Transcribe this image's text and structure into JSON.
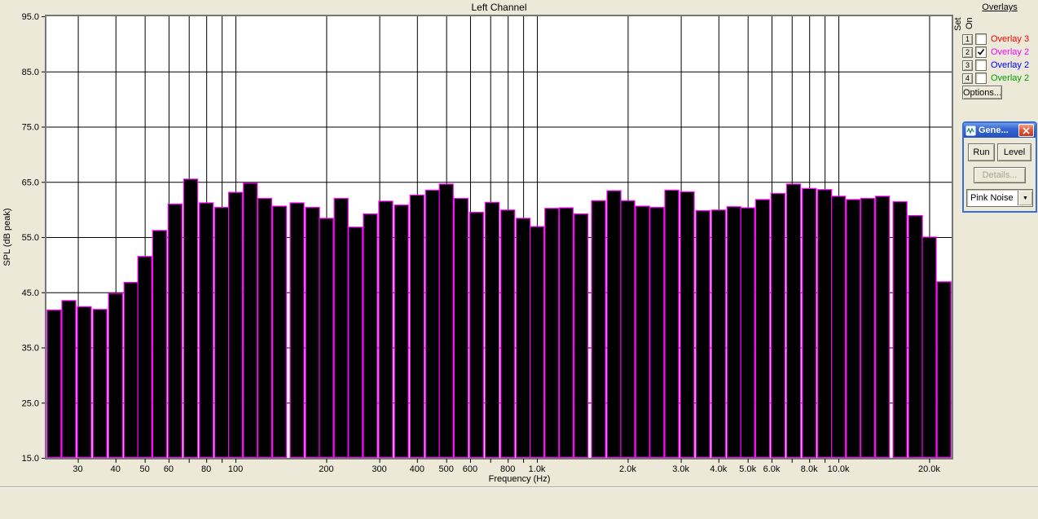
{
  "window": {
    "background": "#ece9d8"
  },
  "chart_data": {
    "type": "bar",
    "title": "Left Channel",
    "xlabel": "Frequency (Hz)",
    "ylabel": "SPL (dB peak)",
    "x_scale": "log",
    "xlim": [
      23.6,
      23740
    ],
    "ylim": [
      15,
      95
    ],
    "grid": true,
    "plot_bg": "#ffffff",
    "grid_color": "#000000",
    "bar_fill": "#000000",
    "bar_outline": "#ff00ff",
    "y_ticks": [
      {
        "v": 95,
        "label": "95.0"
      },
      {
        "v": 85,
        "label": "85.0"
      },
      {
        "v": 75,
        "label": "75.0"
      },
      {
        "v": 65,
        "label": "65.0"
      },
      {
        "v": 55,
        "label": "55.0"
      },
      {
        "v": 45,
        "label": "45.0"
      },
      {
        "v": 35,
        "label": "35.0"
      },
      {
        "v": 25,
        "label": "25.0"
      },
      {
        "v": 15,
        "label": "15.0"
      }
    ],
    "x_gridlines": [
      30,
      40,
      50,
      60,
      70,
      80,
      90,
      100,
      200,
      300,
      400,
      500,
      600,
      700,
      800,
      900,
      1000,
      2000,
      3000,
      4000,
      5000,
      6000,
      7000,
      8000,
      9000,
      10000,
      20000
    ],
    "x_ticks": [
      {
        "f": 30,
        "label": "30"
      },
      {
        "f": 40,
        "label": "40"
      },
      {
        "f": 50,
        "label": "50"
      },
      {
        "f": 60,
        "label": "60"
      },
      {
        "f": 80,
        "label": "80"
      },
      {
        "f": 100,
        "label": "100"
      },
      {
        "f": 200,
        "label": "200"
      },
      {
        "f": 300,
        "label": "300"
      },
      {
        "f": 400,
        "label": "400"
      },
      {
        "f": 500,
        "label": "500"
      },
      {
        "f": 600,
        "label": "600"
      },
      {
        "f": 800,
        "label": "800"
      },
      {
        "f": 1000,
        "label": "1.0k"
      },
      {
        "f": 2000,
        "label": "2.0k"
      },
      {
        "f": 3000,
        "label": "3.0k"
      },
      {
        "f": 4000,
        "label": "4.0k"
      },
      {
        "f": 5000,
        "label": "5.0k"
      },
      {
        "f": 6000,
        "label": "6.0k"
      },
      {
        "f": 8000,
        "label": "8.0k"
      },
      {
        "f": 10000,
        "label": "10.0k"
      },
      {
        "f": 20000,
        "label": "20.0k"
      }
    ],
    "frequencies": [
      25,
      28,
      31.5,
      35.5,
      40,
      45,
      50,
      56,
      63,
      71,
      80,
      90,
      100,
      112,
      125,
      140,
      160,
      180,
      200,
      224,
      250,
      280,
      315,
      355,
      400,
      450,
      500,
      560,
      630,
      710,
      800,
      900,
      1000,
      1120,
      1250,
      1400,
      1600,
      1800,
      2000,
      2240,
      2500,
      2800,
      3150,
      3550,
      4000,
      4500,
      5000,
      5600,
      6300,
      7100,
      8000,
      9000,
      10000,
      11200,
      12500,
      14000,
      16000,
      18000,
      20000,
      22400
    ],
    "values_db": [
      41.8,
      43.5,
      42.4,
      41.9,
      44.8,
      46.8,
      51.5,
      56.2,
      61.0,
      65.5,
      61.2,
      60.4,
      63.1,
      64.8,
      62.0,
      60.6,
      61.2,
      60.4,
      58.4,
      62.0,
      56.8,
      59.2,
      61.5,
      60.8,
      62.6,
      63.5,
      64.6,
      62.0,
      59.5,
      61.3,
      59.9,
      58.4,
      56.9,
      60.2,
      60.3,
      59.2,
      61.6,
      63.4,
      61.6,
      60.6,
      60.4,
      63.5,
      63.2,
      59.8,
      59.9,
      60.5,
      60.3,
      61.8,
      62.9,
      64.6,
      63.8,
      63.6,
      62.4,
      61.8,
      62.0,
      62.4,
      61.4,
      58.9,
      55.0,
      46.9
    ]
  },
  "overlays_panel": {
    "heading": "Overlays",
    "set_column_label": "Set",
    "on_column_label": "On",
    "rows": [
      {
        "set_button": "1",
        "checked": false,
        "label": "Overlay 3",
        "color": "#ff0000"
      },
      {
        "set_button": "2",
        "checked": true,
        "label": "Overlay 2",
        "color": "#ff00ff"
      },
      {
        "set_button": "3",
        "checked": false,
        "label": "Overlay 2",
        "color": "#0000ff"
      },
      {
        "set_button": "4",
        "checked": false,
        "label": "Overlay 2",
        "color": "#00a000"
      }
    ],
    "options_button": "Options..."
  },
  "generator_window": {
    "title": "Gene...",
    "run_label": "Run",
    "level_label": "Level",
    "details_label": "Details...",
    "details_enabled": false,
    "signal_selected": "Pink Noise"
  }
}
